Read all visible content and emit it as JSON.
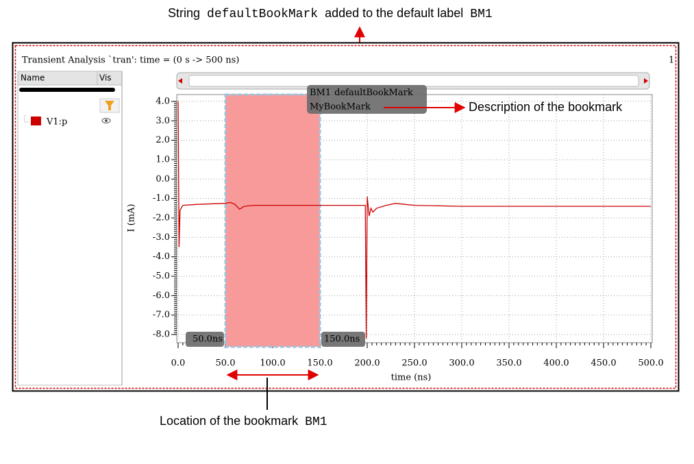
{
  "annotations": {
    "top": [
      "String",
      "defaultBookMark",
      "added to the default label",
      "BM1"
    ],
    "description": "Description of the bookmark",
    "location": [
      "Location of the bookmark",
      "BM1"
    ]
  },
  "window": {
    "title": "Transient Analysis `tran': time = (0 s -> 500 ns)",
    "index": "1"
  },
  "panel": {
    "headers": [
      "Name",
      "Vis"
    ],
    "signal": "V1:p"
  },
  "chart_data": {
    "type": "line",
    "x_label": "time (ns)",
    "y_label": "I (mA)",
    "x": [
      0,
      1,
      2,
      5,
      20,
      50,
      55,
      60,
      65,
      70,
      80,
      100,
      150,
      198,
      199,
      200,
      202,
      204,
      206,
      210,
      220,
      230,
      240,
      250,
      300,
      400,
      500
    ],
    "series": [
      {
        "name": "V1:p",
        "color": "#cc0000",
        "values": [
          4.0,
          -3.5,
          -1.6,
          -1.35,
          -1.3,
          -1.25,
          -1.2,
          -1.3,
          -1.55,
          -1.4,
          -1.35,
          -1.35,
          -1.35,
          -1.35,
          -8.2,
          -0.9,
          -1.9,
          -1.5,
          -1.7,
          -1.5,
          -1.35,
          -1.25,
          -1.3,
          -1.35,
          -1.4,
          -1.4,
          -1.4
        ]
      }
    ],
    "xlim": [
      0,
      500
    ],
    "ylim": [
      -8.35,
      4.35
    ],
    "xticks": [
      {
        "value": 0,
        "label": "0.0"
      },
      {
        "value": 50,
        "label": "50.0"
      },
      {
        "value": 100,
        "label": "100.0"
      },
      {
        "value": 150,
        "label": "150.0"
      },
      {
        "value": 200,
        "label": "200.0"
      },
      {
        "value": 250,
        "label": "250.0"
      },
      {
        "value": 300,
        "label": "300.0"
      },
      {
        "value": 350,
        "label": "350.0"
      },
      {
        "value": 400,
        "label": "400.0"
      },
      {
        "value": 450,
        "label": "450.0"
      },
      {
        "value": 500,
        "label": "500.0"
      }
    ],
    "yticks": [
      {
        "value": 4,
        "label": "4.0"
      },
      {
        "value": 3,
        "label": "3.0"
      },
      {
        "value": 2,
        "label": "2.0"
      },
      {
        "value": 1,
        "label": "1.0"
      },
      {
        "value": 0,
        "label": "0.0"
      },
      {
        "value": -1,
        "label": "-1.0"
      },
      {
        "value": -2,
        "label": "-2.0"
      },
      {
        "value": -3,
        "label": "-3.0"
      },
      {
        "value": -4,
        "label": "-4.0"
      },
      {
        "value": -5,
        "label": "-5.0"
      },
      {
        "value": -6,
        "label": "-6.0"
      },
      {
        "value": -7,
        "label": "-7.0"
      },
      {
        "value": -8,
        "label": "-8.0"
      }
    ],
    "grid": true,
    "bookmark": {
      "label": "BM1",
      "text": "defaultBookMark",
      "description": "MyBookMark",
      "start": 50,
      "end": 150,
      "start_label": "50.0ns",
      "end_label": "150.0ns",
      "color": "#f99a9a"
    }
  }
}
